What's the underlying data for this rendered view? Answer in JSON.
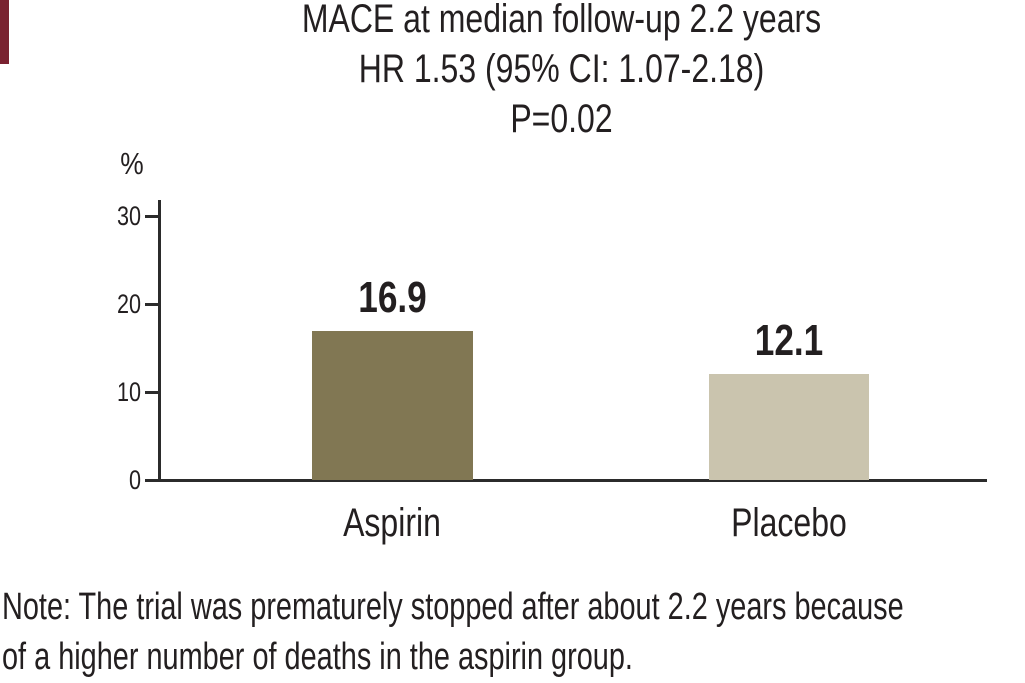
{
  "figure": {
    "accent_bar_color": "#7a2230",
    "background_color": "#ffffff",
    "text_color": "#231f20",
    "axis_color": "#2b2b2b"
  },
  "chart_data": {
    "type": "bar",
    "title_lines": [
      "MACE at median follow-up 2.2 years",
      "HR 1.53 (95% CI: 1.07-2.18)",
      "P=0.02"
    ],
    "categories": [
      "Aspirin",
      "Placebo"
    ],
    "values": [
      16.9,
      12.1
    ],
    "bar_colors": [
      "#817753",
      "#cac4ae"
    ],
    "ylabel": "%",
    "xlabel": "",
    "yticks": [
      0,
      10,
      20,
      30
    ],
    "ylim": [
      0,
      30
    ],
    "grid": false,
    "legend": "none",
    "value_labels_shown": true
  },
  "note": {
    "lines": [
      "Note: The trial was prematurely stopped after about 2.2 years because",
      "of a higher number of deaths in the aspirin group."
    ]
  }
}
